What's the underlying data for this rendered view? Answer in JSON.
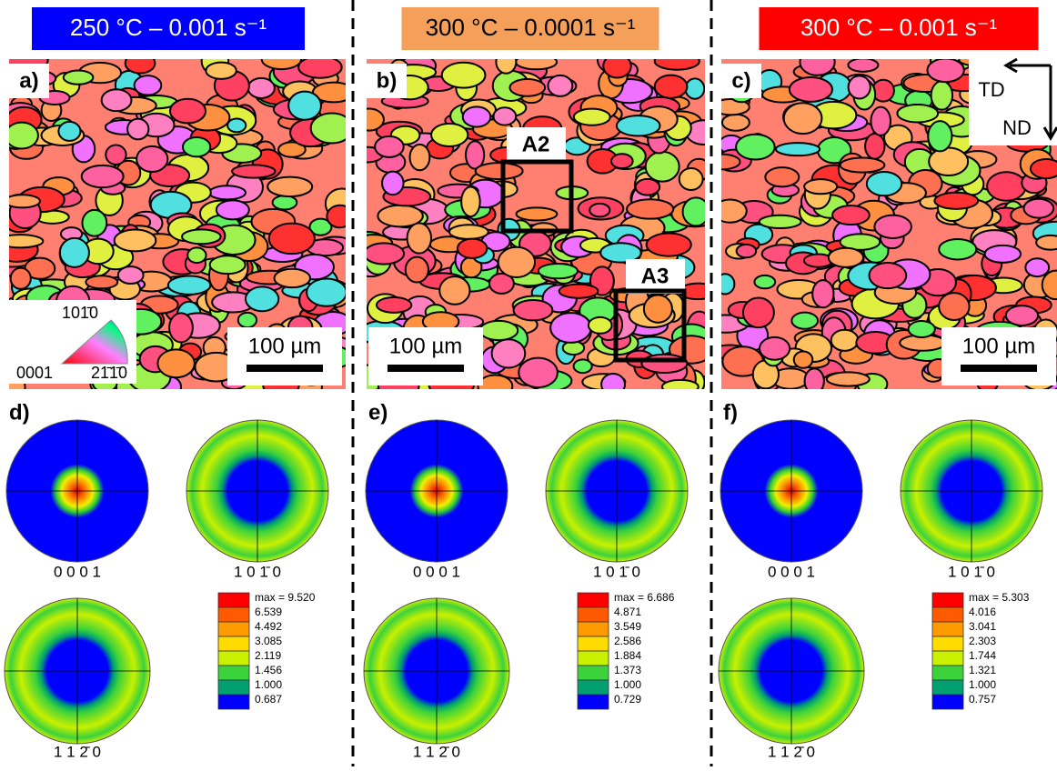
{
  "columns": [
    {
      "header": "250 °C – 0.001 s⁻¹",
      "map_label": "a)",
      "scale_bar": "100 µm",
      "pf_label": "d)",
      "pole_labels": [
        "0 0 0 1",
        "1 0 1̄ 0",
        "1 1 2̄ 0"
      ],
      "legend": [
        "max = 9.520",
        "6.539",
        "4.492",
        "3.085",
        "2.119",
        "1.456",
        "1.000",
        "0.687"
      ]
    },
    {
      "header": "300 °C – 0.0001 s⁻¹",
      "map_label": "b)",
      "scale_bar": "100 µm",
      "pf_label": "e)",
      "pole_labels": [
        "0 0 0 1",
        "1 0 1̄ 0",
        "1 1 2̄ 0"
      ],
      "legend": [
        "max = 6.686",
        "4.871",
        "3.549",
        "2.586",
        "1.884",
        "1.373",
        "1.000",
        "0.729"
      ]
    },
    {
      "header": "300 °C – 0.001 s⁻¹",
      "map_label": "c)",
      "scale_bar": "100 µm",
      "pf_label": "f)",
      "pole_labels": [
        "0 0 0 1",
        "1 0 1̄ 0",
        "1 1 2̄ 0"
      ],
      "legend": [
        "max = 5.303",
        "4.016",
        "3.041",
        "2.303",
        "1.744",
        "1.321",
        "1.000",
        "0.757"
      ]
    }
  ],
  "ipf_key": [
    "101̄0",
    "0001",
    "21̄1̄0"
  ],
  "regions": [
    "A2",
    "A3"
  ],
  "directions": [
    "TD",
    "ND"
  ],
  "header_colors": [
    "#0000ff",
    "#f5a05a",
    "#ff0000"
  ],
  "header_text_colors": [
    "#ffffff",
    "#000000",
    "#ffffff"
  ],
  "legend_colors": [
    "#ff0000",
    "#ff5a00",
    "#ff9a00",
    "#ffdc00",
    "#c8f000",
    "#3cd23c",
    "#00a070",
    "#0000ff"
  ]
}
